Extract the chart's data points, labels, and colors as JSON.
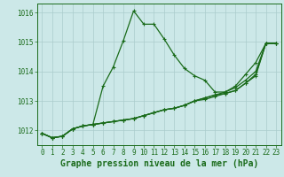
{
  "xlabel": "Graphe pression niveau de la mer (hPa)",
  "bg_color": "#cce8e8",
  "line_color": "#1a6b1a",
  "grid_color": "#aacccc",
  "ylim": [
    1011.5,
    1016.3
  ],
  "xlim": [
    -0.5,
    23.5
  ],
  "yticks": [
    1012,
    1013,
    1014,
    1015,
    1016
  ],
  "xticks": [
    0,
    1,
    2,
    3,
    4,
    5,
    6,
    7,
    8,
    9,
    10,
    11,
    12,
    13,
    14,
    15,
    16,
    17,
    18,
    19,
    20,
    21,
    22,
    23
  ],
  "lines": [
    [
      1011.9,
      1011.75,
      1011.8,
      1012.05,
      1012.15,
      1012.2,
      1013.5,
      1014.15,
      1015.05,
      1016.05,
      1015.6,
      1015.6,
      1015.1,
      1014.55,
      1014.1,
      1013.85,
      1013.7,
      1013.3,
      1013.3,
      1013.5,
      1013.9,
      1014.3,
      1014.95,
      1014.95
    ],
    [
      1011.9,
      1011.75,
      1011.8,
      1012.05,
      1012.15,
      1012.2,
      1012.25,
      1012.3,
      1012.35,
      1012.4,
      1012.5,
      1012.6,
      1012.7,
      1012.75,
      1012.85,
      1013.0,
      1013.05,
      1013.15,
      1013.25,
      1013.35,
      1013.6,
      1013.9,
      1014.95,
      1014.95
    ],
    [
      1011.9,
      1011.75,
      1011.8,
      1012.05,
      1012.15,
      1012.2,
      1012.25,
      1012.3,
      1012.35,
      1012.4,
      1012.5,
      1012.6,
      1012.7,
      1012.75,
      1012.85,
      1013.0,
      1013.1,
      1013.2,
      1013.25,
      1013.35,
      1013.6,
      1013.85,
      1014.95,
      1014.95
    ],
    [
      1011.9,
      1011.75,
      1011.8,
      1012.05,
      1012.15,
      1012.2,
      1012.25,
      1012.3,
      1012.35,
      1012.4,
      1012.5,
      1012.6,
      1012.7,
      1012.75,
      1012.85,
      1013.0,
      1013.1,
      1013.2,
      1013.3,
      1013.45,
      1013.7,
      1014.0,
      1014.95,
      1014.95
    ]
  ],
  "tick_fontsize": 5.5,
  "xlabel_fontsize": 7.0,
  "marker": "+",
  "markersize": 3.5,
  "linewidth": 0.9
}
